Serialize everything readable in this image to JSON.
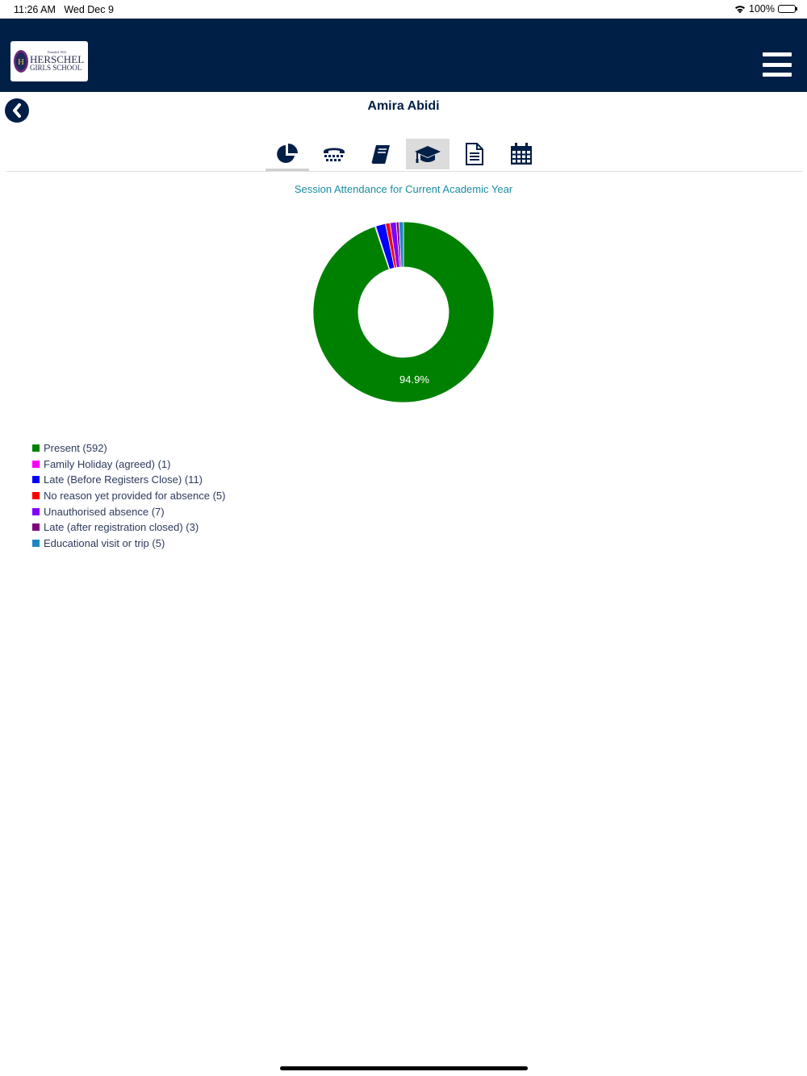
{
  "status_bar": {
    "time": "11:26 AM",
    "date": "Wed Dec 9",
    "battery": "100%",
    "battery_level_percent": 100
  },
  "header": {
    "logo": {
      "founded": "Founded 1922",
      "line1": "HERSCHEL",
      "line2": "GIRLS SCHOOL"
    },
    "menu_icon": "hamburger-icon"
  },
  "page": {
    "title": "Amira Abidi",
    "back_icon": "chevron-left-circle-icon"
  },
  "tabs": [
    {
      "icon": "pie-chart-icon",
      "active": false
    },
    {
      "icon": "phone-icon",
      "active": false
    },
    {
      "icon": "book-icon",
      "active": false
    },
    {
      "icon": "graduation-cap-icon",
      "active": true
    },
    {
      "icon": "document-icon",
      "active": false
    },
    {
      "icon": "calendar-icon",
      "active": false
    }
  ],
  "chart_data": {
    "type": "pie",
    "variant": "donut",
    "title": "Session Attendance for Current Academic Year",
    "slice_label": "94.9%",
    "legend_position": "bottom-left",
    "series": [
      {
        "name": "Present",
        "value": 592,
        "color": "#008000"
      },
      {
        "name": "Family Holiday (agreed)",
        "value": 1,
        "color": "#ff00ff"
      },
      {
        "name": "Late (Before Registers Close)",
        "value": 11,
        "color": "#0000ff"
      },
      {
        "name": "No reason yet provided for absence",
        "value": 5,
        "color": "#ff0000"
      },
      {
        "name": "Unauthorised absence",
        "value": 7,
        "color": "#8000ff"
      },
      {
        "name": "Late (after registration closed)",
        "value": 3,
        "color": "#800080"
      },
      {
        "name": "Educational visit or trip",
        "value": 5,
        "color": "#1e86c6"
      }
    ],
    "legend_labels": [
      "Present (592)",
      "Family Holiday (agreed) (1)",
      "Late (Before Registers Close) (11)",
      "No reason yet provided for absence (5)",
      "Unauthorised absence (7)",
      "Late (after registration closed) (3)",
      "Educational visit or trip (5)"
    ]
  },
  "colors": {
    "brand_navy": "#001f47",
    "chart_title": "#1a8ca0"
  }
}
